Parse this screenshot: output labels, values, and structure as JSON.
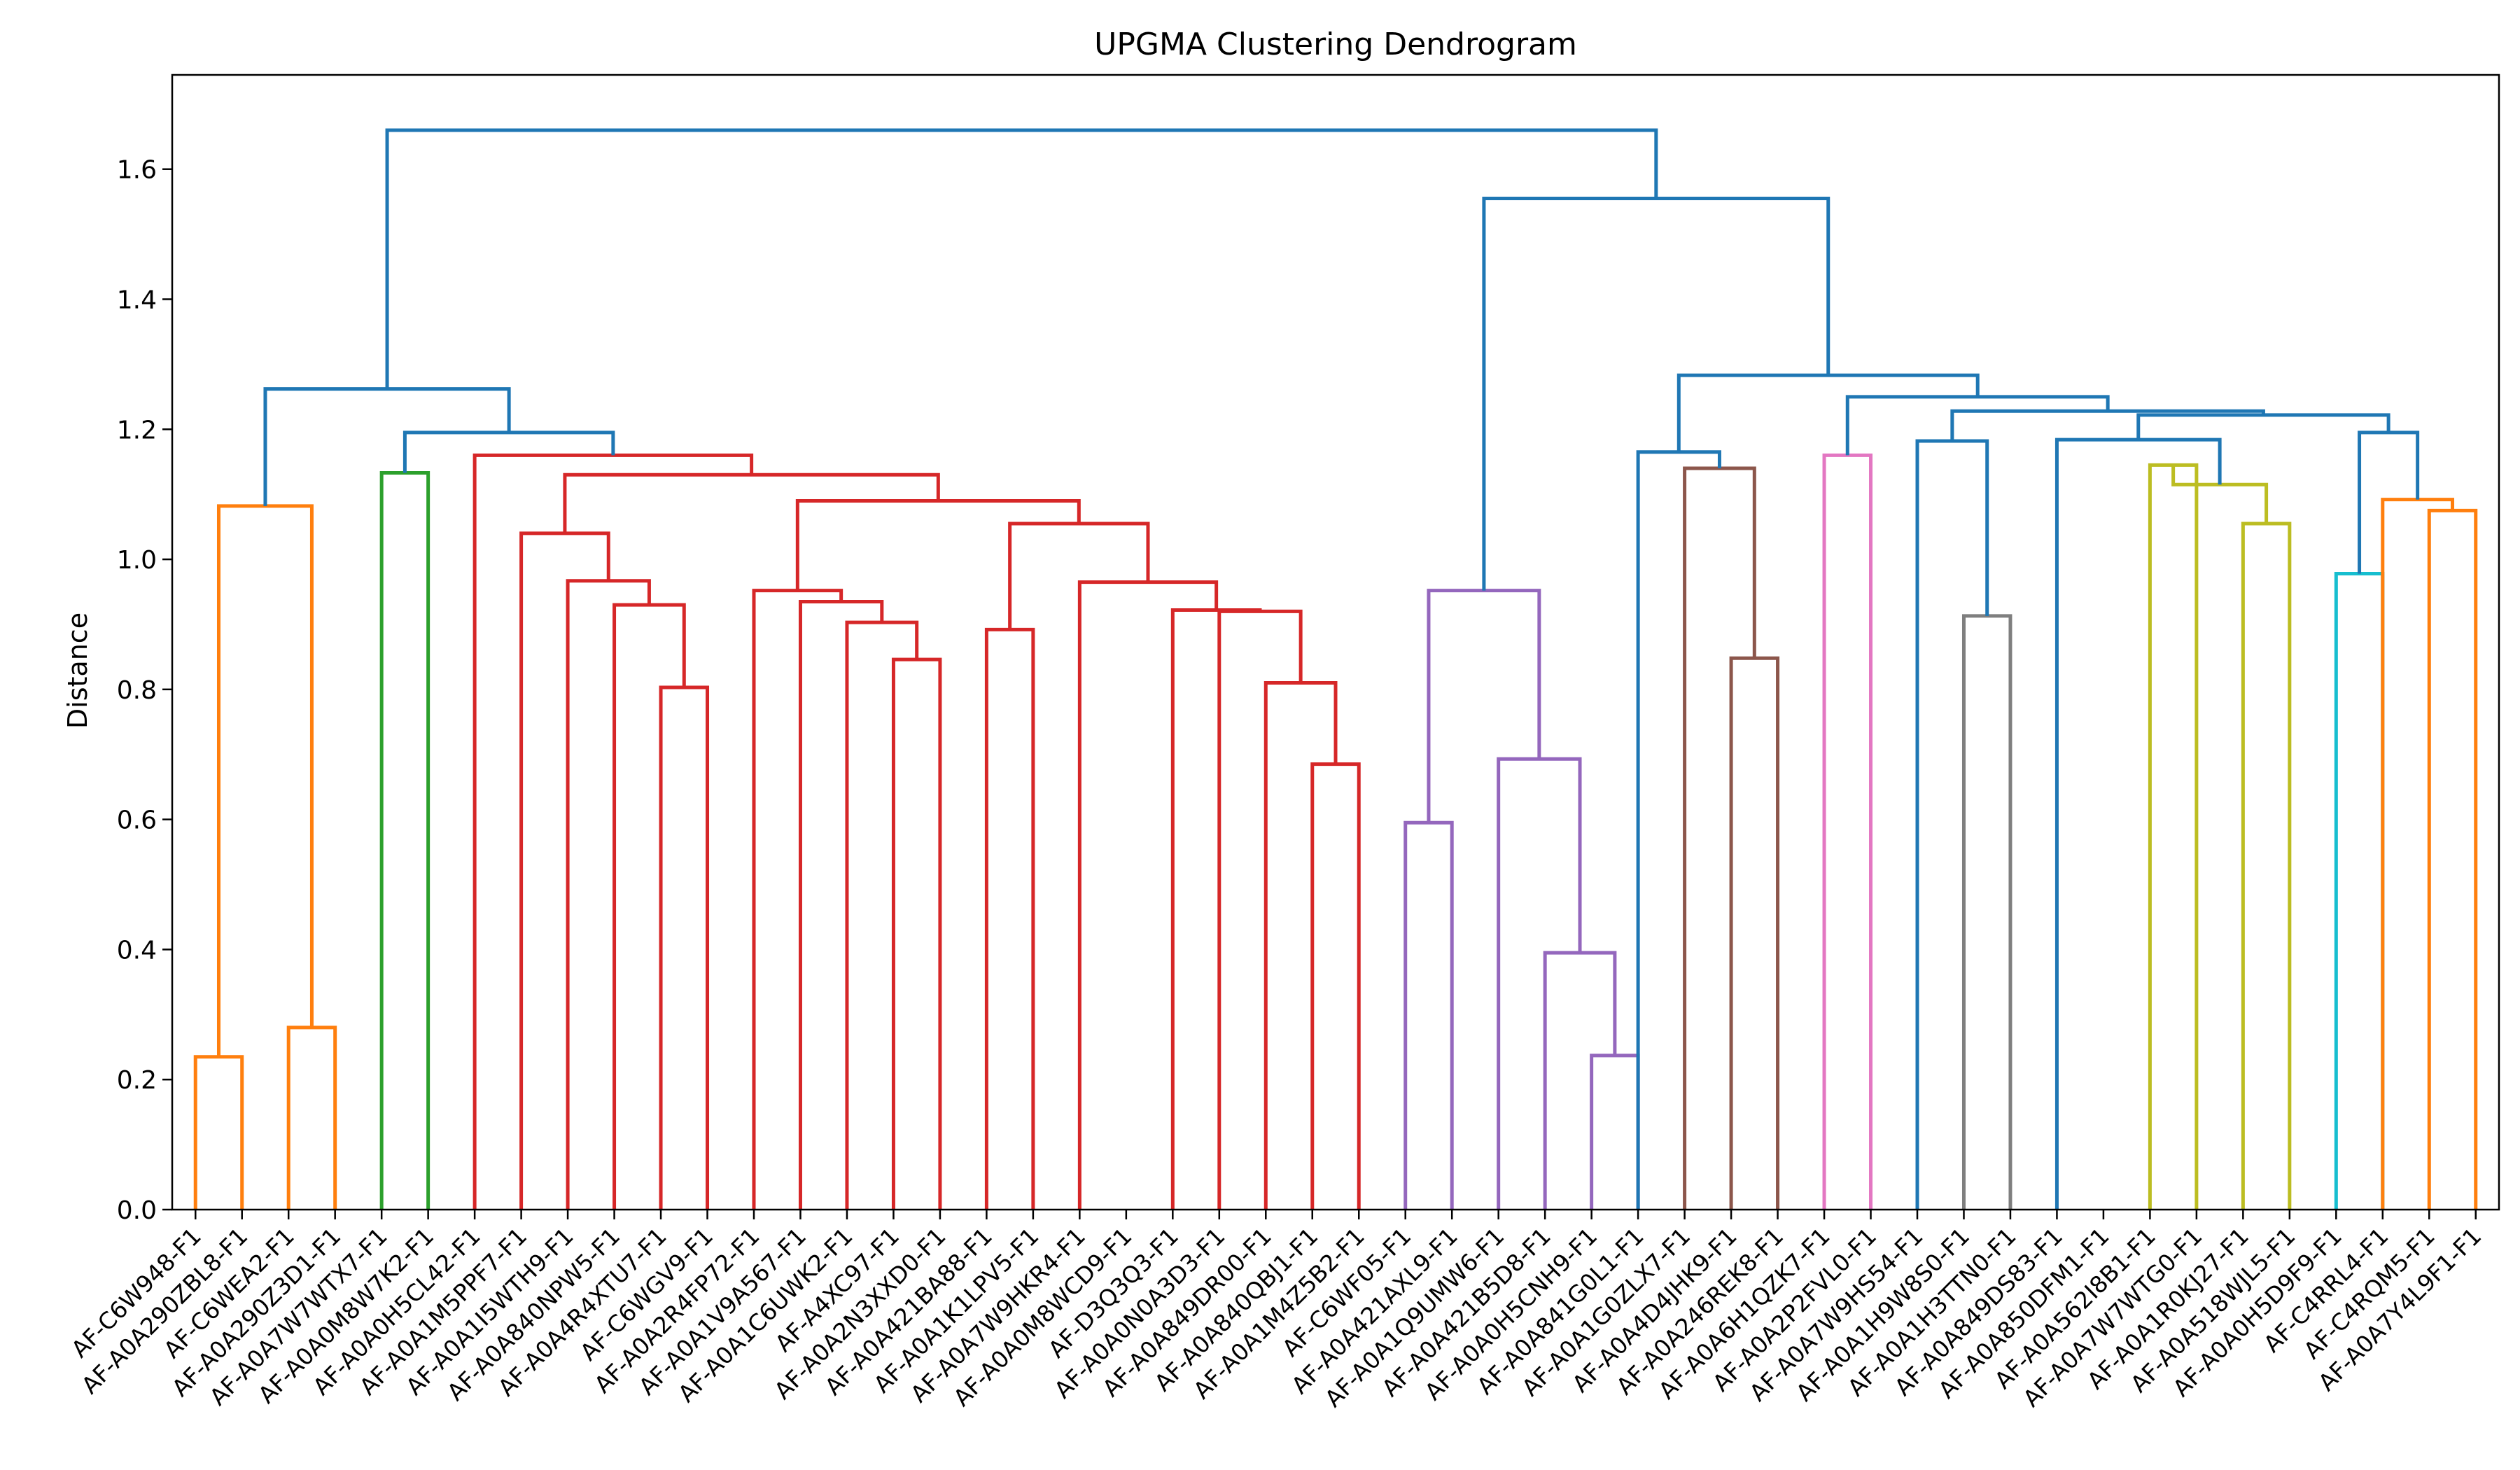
{
  "chart_data": {
    "type": "dendrogram",
    "title": "UPGMA Clustering Dendrogram",
    "xlabel": "",
    "ylabel": "Distance",
    "ylim": [
      0.0,
      1.745
    ],
    "yticks": [
      "0.0",
      "0.2",
      "0.4",
      "0.6",
      "0.8",
      "1.0",
      "1.2",
      "1.4",
      "1.6"
    ],
    "grid": false,
    "leaves": [
      "AF-C6W948-F1",
      "AF-A0A290ZBL8-F1",
      "AF-C6WEA2-F1",
      "AF-A0A290Z3D1-F1",
      "AF-A0A7W7WTX7-F1",
      "AF-A0A0M8W7K2-F1",
      "AF-A0A0H5CL42-F1",
      "AF-A0A1M5PPF7-F1",
      "AF-A0A1I5WTH9-F1",
      "AF-A0A840NPW5-F1",
      "AF-A0A4R4XTU7-F1",
      "AF-C6WGV9-F1",
      "AF-A0A2R4FP72-F1",
      "AF-A0A1V9A567-F1",
      "AF-A0A1C6UWK2-F1",
      "AF-A4XC97-F1",
      "AF-A0A2N3XXD0-F1",
      "AF-A0A421BA88-F1",
      "AF-A0A1K1LPV5-F1",
      "AF-A0A7W9HKR4-F1",
      "AF-A0A0M8WCD9-F1",
      "AF-D3Q3Q3-F1",
      "AF-A0A0N0A3D3-F1",
      "AF-A0A849DR00-F1",
      "AF-A0A840QBJ1-F1",
      "AF-A0A1M4Z5B2-F1",
      "AF-C6WF05-F1",
      "AF-A0A421AXL9-F1",
      "AF-A0A1Q9UMW6-F1",
      "AF-A0A421B5D8-F1",
      "AF-A0A0H5CNH9-F1",
      "AF-A0A841G0L1-F1",
      "AF-A0A1G0ZLX7-F1",
      "AF-A0A4D4JHK9-F1",
      "AF-A0A246REK8-F1",
      "AF-A0A6H1QZK7-F1",
      "AF-A0A2P2FVL0-F1",
      "AF-A0A7W9HS54-F1",
      "AF-A0A1H9W8S0-F1",
      "AF-A0A1H3TTN0-F1",
      "AF-A0A849DS83-F1",
      "AF-A0A850DFM1-F1",
      "AF-A0A562I8B1-F1",
      "AF-A0A7W7WTG0-F1",
      "AF-A0A1R0KJ27-F1",
      "AF-A0A518WJL5-F1",
      "AF-A0A0H5D9F9-F1",
      "AF-C4RRL4-F1",
      "AF-C4RQM5-F1",
      "AF-A0A7Y4L9F1-F1"
    ],
    "merges": [
      {
        "left": "L0",
        "right": "L1",
        "height": 0.235,
        "color": "#ff7f0e"
      },
      {
        "left": "L2",
        "right": "L3",
        "height": 0.28,
        "color": "#ff7f0e"
      },
      {
        "left": 0,
        "right": 1,
        "height": 1.082,
        "color": "#ff7f0e"
      },
      {
        "left": "L4",
        "right": "L5",
        "height": 1.133,
        "color": "#2ca02c"
      },
      {
        "left": "L10",
        "right": "L11",
        "height": 0.803,
        "color": "#d62728"
      },
      {
        "left": "L9",
        "right": 4,
        "height": 0.93,
        "color": "#d62728"
      },
      {
        "left": "L8",
        "right": 5,
        "height": 0.967,
        "color": "#d62728"
      },
      {
        "left": "L7",
        "right": 6,
        "height": 1.04,
        "color": "#d62728"
      },
      {
        "left": "L15",
        "right": "L16",
        "height": 0.846,
        "color": "#d62728"
      },
      {
        "left": "L14",
        "right": 8,
        "height": 0.903,
        "color": "#d62728"
      },
      {
        "left": "L13",
        "right": 9,
        "height": 0.935,
        "color": "#d62728"
      },
      {
        "left": "L12",
        "right": 10,
        "height": 0.952,
        "color": "#d62728"
      },
      {
        "left": "L17",
        "right": "L18",
        "height": 0.892,
        "color": "#d62728"
      },
      {
        "left": "L24",
        "right": "L25",
        "height": 0.685,
        "color": "#d62728"
      },
      {
        "left": "L23",
        "right": 13,
        "height": 0.81,
        "color": "#d62728"
      },
      {
        "left": "L22",
        "right": 14,
        "height": 0.92,
        "color": "#d62728"
      },
      {
        "left": "L21",
        "right": 15,
        "height": 0.922,
        "color": "#d62728"
      },
      {
        "left": "L19",
        "right": 16,
        "height": 0.965,
        "color": "#d62728"
      },
      {
        "left": 12,
        "right": 17,
        "height": 1.055,
        "color": "#d62728"
      },
      {
        "left": 11,
        "right": 18,
        "height": 1.09,
        "color": "#d62728"
      },
      {
        "left": 7,
        "right": 19,
        "height": 1.13,
        "color": "#d62728"
      },
      {
        "left": "L6",
        "right": 20,
        "height": 1.16,
        "color": "#d62728"
      },
      {
        "left": 3,
        "right": 21,
        "height": 1.195,
        "color": "#1f77b4"
      },
      {
        "left": 2,
        "right": 22,
        "height": 1.262,
        "color": "#1f77b4"
      },
      {
        "left": "L26",
        "right": "L27",
        "height": 0.595,
        "color": "#9467bd"
      },
      {
        "left": "L30",
        "right": "L31",
        "height": 0.237,
        "color": "#9467bd"
      },
      {
        "left": "L29",
        "right": 25,
        "height": 0.395,
        "color": "#9467bd"
      },
      {
        "left": "L28",
        "right": 26,
        "height": 0.693,
        "color": "#9467bd"
      },
      {
        "left": 24,
        "right": 27,
        "height": 0.952,
        "color": "#9467bd"
      },
      {
        "left": "L33",
        "right": "L34",
        "height": 0.848,
        "color": "#8c564b"
      },
      {
        "left": "L32",
        "right": 29,
        "height": 1.14,
        "color": "#8c564b"
      },
      {
        "left": "L35",
        "right": "L36",
        "height": 1.16,
        "color": "#e377c2"
      },
      {
        "left": "L38",
        "right": "L39",
        "height": 0.913,
        "color": "#7f7f7f"
      },
      {
        "left": "L42",
        "right": "L43",
        "height": 1.145,
        "color": "#bcbd22"
      },
      {
        "left": "L44",
        "right": "L45",
        "height": 1.055,
        "color": "#bcbd22"
      },
      {
        "left": 33,
        "right": 34,
        "height": 1.115,
        "color": "#bcbd22"
      },
      {
        "left": "L46",
        "right": "L47",
        "height": 0.978,
        "color": "#17becf"
      },
      {
        "left": "L48",
        "right": "L49",
        "height": 1.075,
        "color": "#ff7f0e"
      },
      {
        "left": "L47",
        "right": 37,
        "height": 1.092,
        "color": "#ff7f0e"
      },
      {
        "left": "L31",
        "right": 30,
        "height": 1.165,
        "color": "#1f77b4"
      },
      {
        "left": "L37",
        "right": 32,
        "height": 1.182,
        "color": "#1f77b4"
      },
      {
        "left": "L40",
        "right": 35,
        "height": 1.184,
        "color": "#1f77b4"
      },
      {
        "left": 36,
        "right": 38,
        "height": 1.195,
        "color": "#1f77b4"
      },
      {
        "left": 41,
        "right": 42,
        "height": 1.222,
        "color": "#1f77b4"
      },
      {
        "left": 40,
        "right": 43,
        "height": 1.228,
        "color": "#1f77b4"
      },
      {
        "left": 31,
        "right": 44,
        "height": 1.25,
        "color": "#1f77b4"
      },
      {
        "left": 39,
        "right": 45,
        "height": 1.283,
        "color": "#1f77b4"
      },
      {
        "left": 28,
        "right": 46,
        "height": 1.555,
        "color": "#1f77b4"
      },
      {
        "left": 23,
        "right": 47,
        "height": 1.66,
        "color": "#1f77b4"
      }
    ]
  }
}
